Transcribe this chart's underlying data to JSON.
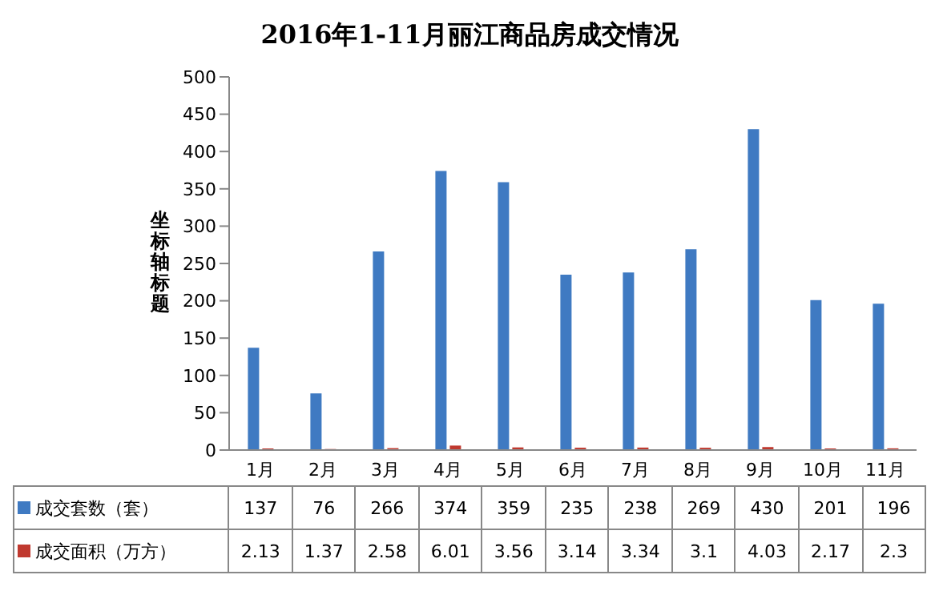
{
  "chart_data": {
    "type": "bar",
    "title": "2016年1-11月丽江商品房成交情况",
    "ylabel": "坐标轴标题",
    "categories": [
      "1月",
      "2月",
      "3月",
      "4月",
      "5月",
      "6月",
      "7月",
      "8月",
      "9月",
      "10月",
      "11月"
    ],
    "series": [
      {
        "name": "成交套数（套）",
        "color": "#3f7ac2",
        "values": [
          137,
          76,
          266,
          374,
          359,
          235,
          238,
          269,
          430,
          201,
          196
        ]
      },
      {
        "name": "成交面积（万方）",
        "color": "#c0392f",
        "values": [
          2.13,
          1.37,
          2.58,
          6.01,
          3.56,
          3.14,
          3.34,
          3.1,
          4.03,
          2.17,
          2.3
        ]
      }
    ],
    "ylim": [
      0,
      500
    ],
    "yticks": [
      0,
      50,
      100,
      150,
      200,
      250,
      300,
      350,
      400,
      450,
      500
    ],
    "grid": false,
    "legend": "bottom",
    "data_labels": true
  }
}
